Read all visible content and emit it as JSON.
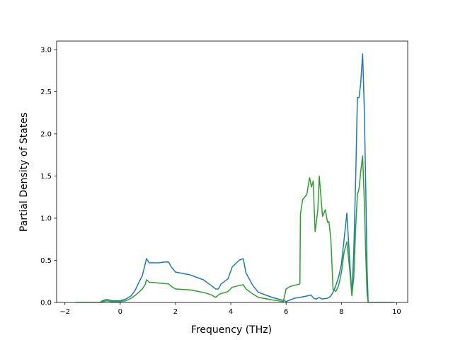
{
  "chart_data": {
    "type": "line",
    "xlabel": "Frequency (THz)",
    "ylabel": "Partial Density of States",
    "xlim": [
      -2.3,
      10.4
    ],
    "ylim": [
      0.0,
      3.1
    ],
    "xticks": [
      "−2",
      "0",
      "2",
      "4",
      "6",
      "8",
      "10"
    ],
    "xtick_values": [
      -2,
      0,
      2,
      4,
      6,
      8,
      10
    ],
    "yticks": [
      "0.0",
      "0.5",
      "1.0",
      "1.5",
      "2.0",
      "2.5",
      "3.0"
    ],
    "ytick_values": [
      0.0,
      0.5,
      1.0,
      1.5,
      2.0,
      2.5,
      3.0
    ],
    "grid": false,
    "legend": "none",
    "series": [
      {
        "color": "#1f77b4",
        "points": [
          [
            -1.6,
            0.0
          ],
          [
            -0.72,
            0.0
          ],
          [
            -0.65,
            0.02
          ],
          [
            -0.5,
            0.035
          ],
          [
            -0.4,
            0.03
          ],
          [
            -0.3,
            0.02
          ],
          [
            0.0,
            0.02
          ],
          [
            0.2,
            0.04
          ],
          [
            0.4,
            0.08
          ],
          [
            0.55,
            0.15
          ],
          [
            0.65,
            0.22
          ],
          [
            0.8,
            0.32
          ],
          [
            0.9,
            0.45
          ],
          [
            0.95,
            0.52
          ],
          [
            1.05,
            0.47
          ],
          [
            1.4,
            0.47
          ],
          [
            1.6,
            0.48
          ],
          [
            1.75,
            0.48
          ],
          [
            1.85,
            0.42
          ],
          [
            2.0,
            0.36
          ],
          [
            2.5,
            0.33
          ],
          [
            3.0,
            0.27
          ],
          [
            3.3,
            0.2
          ],
          [
            3.45,
            0.16
          ],
          [
            3.55,
            0.16
          ],
          [
            3.65,
            0.22
          ],
          [
            3.9,
            0.28
          ],
          [
            4.05,
            0.42
          ],
          [
            4.3,
            0.5
          ],
          [
            4.45,
            0.52
          ],
          [
            4.55,
            0.35
          ],
          [
            4.8,
            0.2
          ],
          [
            5.0,
            0.12
          ],
          [
            5.5,
            0.06
          ],
          [
            5.95,
            0.02
          ],
          [
            6.0,
            0.01
          ],
          [
            6.3,
            0.05
          ],
          [
            6.5,
            0.06
          ],
          [
            6.8,
            0.08
          ],
          [
            6.9,
            0.09
          ],
          [
            7.0,
            0.05
          ],
          [
            7.1,
            0.04
          ],
          [
            7.2,
            0.06
          ],
          [
            7.3,
            0.04
          ],
          [
            7.5,
            0.05
          ],
          [
            7.6,
            0.07
          ],
          [
            7.7,
            0.12
          ],
          [
            7.8,
            0.2
          ],
          [
            7.9,
            0.3
          ],
          [
            8.0,
            0.45
          ],
          [
            8.1,
            0.75
          ],
          [
            8.2,
            1.06
          ],
          [
            8.3,
            0.5
          ],
          [
            8.38,
            0.1
          ],
          [
            8.45,
            0.6
          ],
          [
            8.52,
            1.5
          ],
          [
            8.58,
            2.43
          ],
          [
            8.64,
            2.43
          ],
          [
            8.7,
            2.6
          ],
          [
            8.77,
            2.95
          ],
          [
            8.83,
            2.3
          ],
          [
            8.88,
            1.4
          ],
          [
            8.93,
            0.4
          ],
          [
            8.97,
            0.0
          ],
          [
            9.9,
            0.0
          ]
        ]
      },
      {
        "color": "#2ca02c",
        "points": [
          [
            -1.6,
            0.0
          ],
          [
            -0.72,
            0.0
          ],
          [
            -0.65,
            0.01
          ],
          [
            -0.5,
            0.02
          ],
          [
            -0.3,
            0.01
          ],
          [
            0.0,
            0.01
          ],
          [
            0.2,
            0.02
          ],
          [
            0.4,
            0.05
          ],
          [
            0.6,
            0.1
          ],
          [
            0.8,
            0.16
          ],
          [
            0.9,
            0.21
          ],
          [
            0.95,
            0.27
          ],
          [
            1.05,
            0.24
          ],
          [
            1.4,
            0.23
          ],
          [
            1.75,
            0.22
          ],
          [
            1.85,
            0.19
          ],
          [
            2.0,
            0.16
          ],
          [
            2.5,
            0.15
          ],
          [
            3.0,
            0.12
          ],
          [
            3.3,
            0.09
          ],
          [
            3.45,
            0.06
          ],
          [
            3.6,
            0.1
          ],
          [
            3.9,
            0.13
          ],
          [
            4.05,
            0.18
          ],
          [
            4.3,
            0.2
          ],
          [
            4.45,
            0.21
          ],
          [
            4.55,
            0.16
          ],
          [
            4.8,
            0.1
          ],
          [
            5.0,
            0.06
          ],
          [
            5.5,
            0.03
          ],
          [
            5.9,
            0.01
          ],
          [
            6.0,
            0.16
          ],
          [
            6.15,
            0.19
          ],
          [
            6.5,
            0.22
          ],
          [
            6.52,
            1.05
          ],
          [
            6.6,
            1.22
          ],
          [
            6.75,
            1.28
          ],
          [
            6.85,
            1.48
          ],
          [
            6.92,
            1.37
          ],
          [
            6.98,
            1.44
          ],
          [
            7.05,
            0.84
          ],
          [
            7.15,
            1.1
          ],
          [
            7.2,
            1.5
          ],
          [
            7.32,
            1.02
          ],
          [
            7.42,
            1.1
          ],
          [
            7.5,
            0.95
          ],
          [
            7.55,
            0.96
          ],
          [
            7.62,
            0.75
          ],
          [
            7.7,
            0.15
          ],
          [
            7.8,
            0.13
          ],
          [
            7.9,
            0.2
          ],
          [
            8.0,
            0.35
          ],
          [
            8.1,
            0.6
          ],
          [
            8.2,
            0.72
          ],
          [
            8.3,
            0.4
          ],
          [
            8.38,
            0.08
          ],
          [
            8.45,
            0.3
          ],
          [
            8.52,
            0.9
          ],
          [
            8.58,
            1.28
          ],
          [
            8.64,
            1.35
          ],
          [
            8.7,
            1.55
          ],
          [
            8.77,
            1.74
          ],
          [
            8.83,
            1.2
          ],
          [
            8.88,
            0.6
          ],
          [
            8.93,
            0.1
          ],
          [
            8.97,
            0.0
          ],
          [
            9.9,
            0.0
          ]
        ]
      }
    ]
  }
}
